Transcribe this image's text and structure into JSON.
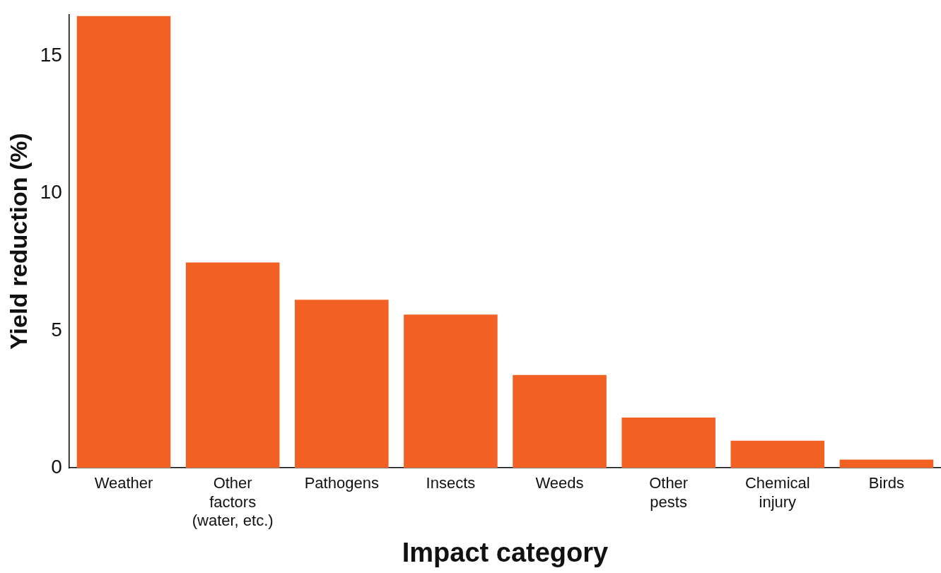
{
  "chart_data": {
    "type": "bar",
    "xlabel": "Impact category",
    "ylabel": "Yield reduction (%)",
    "categories": [
      "Weather",
      "Other\nfactors\n(water, etc.)",
      "Pathogens",
      "Insects",
      "Weeds",
      "Other\npests",
      "Chemical\ninjury",
      "Birds"
    ],
    "values": [
      16.45,
      7.48,
      6.12,
      5.58,
      3.38,
      1.83,
      0.99,
      0.3
    ],
    "color": "#f26024",
    "ylim": [
      0,
      16.5
    ],
    "yticks": [
      0,
      5,
      10,
      15
    ],
    "grid": false,
    "legend": false
  }
}
